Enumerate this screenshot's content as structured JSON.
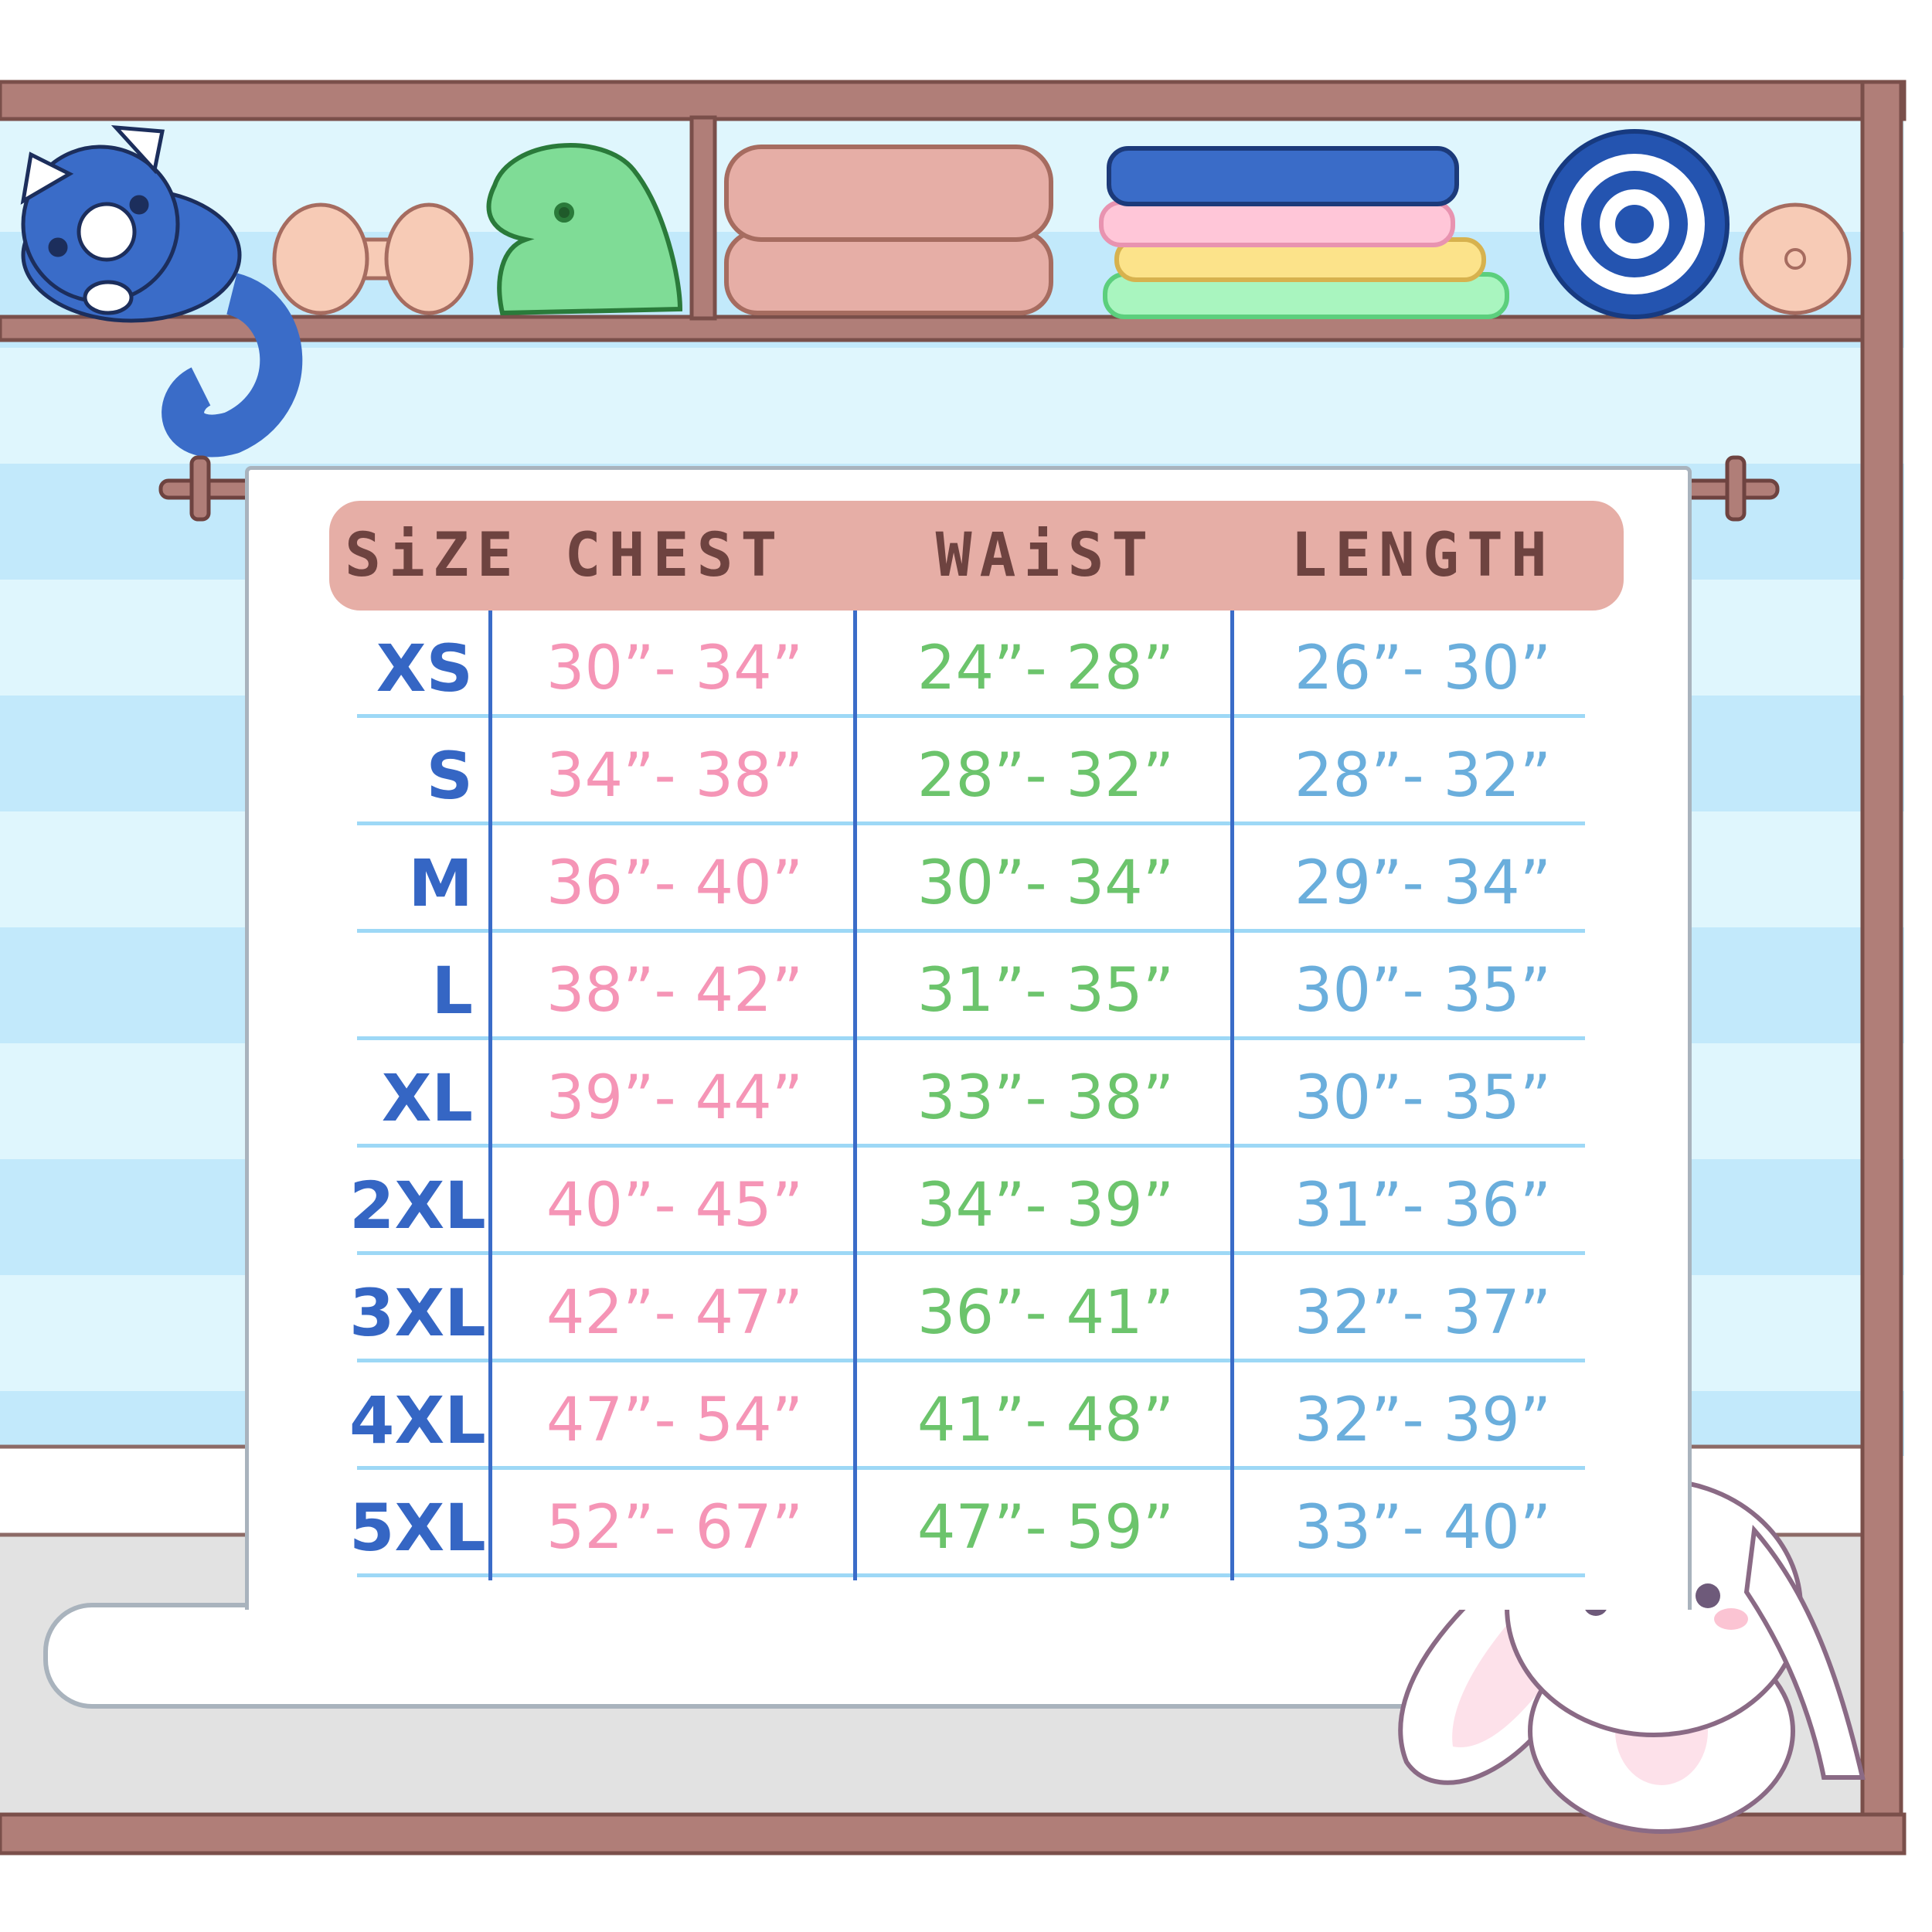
{
  "colors": {
    "frame": "#b07e78",
    "header": "#e6aea6",
    "size": "#3566c4",
    "chest": "#f595b6",
    "waist": "#6cc46c",
    "length": "#6aaedc",
    "row_line": "#9dd8f6",
    "stripe_a": "#c2e9fb",
    "stripe_b": "#dff6fd"
  },
  "table": {
    "headers": {
      "size": "SiZE",
      "chest": "CHEST",
      "waist": "WAiST",
      "length": "LENGTH"
    },
    "rows": [
      {
        "size": "XS",
        "chest": "30”- 34”",
        "waist": "24”- 28”",
        "length": "26”- 30”"
      },
      {
        "size": "S",
        "chest": "34”- 38”",
        "waist": "28”- 32”",
        "length": "28”- 32”"
      },
      {
        "size": "M",
        "chest": "36”- 40”",
        "waist": "30”- 34”",
        "length": "29”- 34”"
      },
      {
        "size": "L",
        "chest": "38”- 42”",
        "waist": "31”- 35”",
        "length": "30”- 35”"
      },
      {
        "size": "XL",
        "chest": "39”- 44”",
        "waist": "33”- 38”",
        "length": "30”- 35”"
      },
      {
        "size": "2XL",
        "chest": "40”- 45”",
        "waist": "34”- 39”",
        "length": "31”- 36”"
      },
      {
        "size": "3XL",
        "chest": "42”- 47”",
        "waist": "36”- 41”",
        "length": "32”- 37”"
      },
      {
        "size": "4XL",
        "chest": "47”- 54”",
        "waist": "41”- 48”",
        "length": "32”- 39”"
      },
      {
        "size": "5XL",
        "chest": "52”- 67”",
        "waist": "47”- 59”",
        "length": "33”- 40”"
      }
    ]
  },
  "decorations": [
    "cat-plush",
    "dumbbell",
    "dinosaur-plush",
    "folded-towels",
    "folded-shirts-stack",
    "rolled-towel",
    "bunny-plush"
  ]
}
